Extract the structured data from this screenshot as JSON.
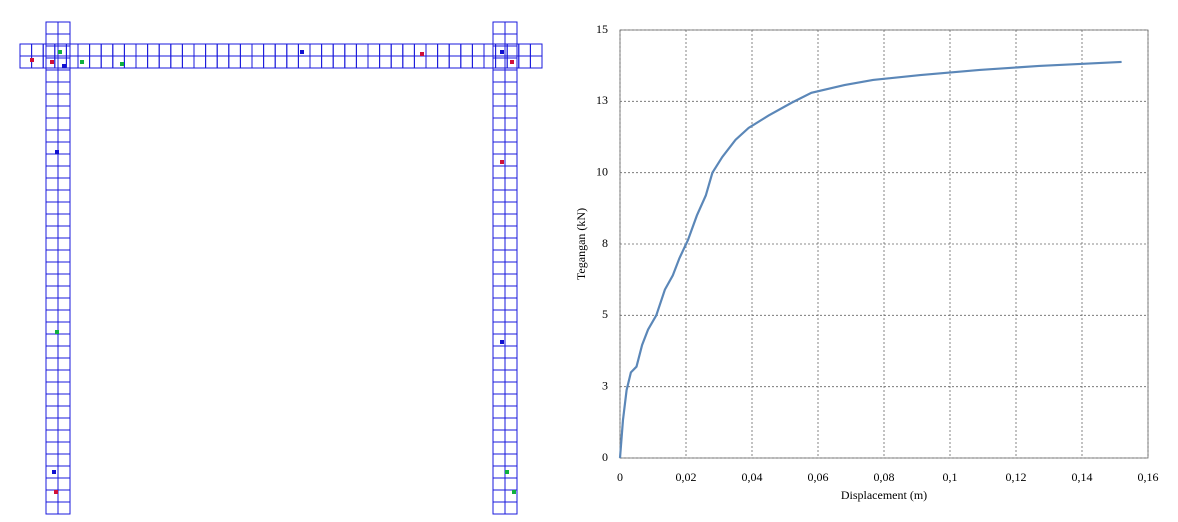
{
  "chart_data": {
    "type": "line",
    "xlabel": "Displacement (m)",
    "ylabel": "Tegangan  (kN)",
    "x": [
      0,
      0.0009,
      0.002,
      0.0033,
      0.005,
      0.0067,
      0.0085,
      0.011,
      0.0136,
      0.016,
      0.018,
      0.0206,
      0.0233,
      0.026,
      0.028,
      0.031,
      0.035,
      0.039,
      0.045,
      0.052,
      0.058,
      0.068,
      0.0767,
      0.091,
      0.109,
      0.127,
      0.152
    ],
    "series": [
      {
        "color": "#5b87b8",
        "values": [
          0,
          1.33,
          2.38,
          3.0,
          3.2,
          3.96,
          4.5,
          5.0,
          5.9,
          6.4,
          7.0,
          7.64,
          8.5,
          9.2,
          10.0,
          10.55,
          11.15,
          11.57,
          12.0,
          12.45,
          12.8,
          13.07,
          13.25,
          13.42,
          13.6,
          13.74,
          13.88
        ]
      }
    ],
    "xlim": [
      0,
      0.16
    ],
    "ylim": [
      0,
      15
    ],
    "xticks": [
      0,
      {
        "value": 0.02,
        "label": "0,02"
      },
      {
        "value": 0.04,
        "label": "0,04"
      },
      {
        "value": 0.06,
        "label": "0,06"
      },
      {
        "value": 0.08,
        "label": "0,08"
      },
      {
        "value": 0.1,
        "label": "0,1"
      },
      {
        "value": 0.12,
        "label": "0,12"
      },
      {
        "value": 0.14,
        "label": "0,14"
      },
      {
        "value": 0.16,
        "label": "0,16"
      }
    ],
    "yticks": [
      0,
      {
        "value": 2.5,
        "label": "3"
      },
      5,
      {
        "value": 7.5,
        "label": "8"
      },
      10,
      {
        "value": 12.5,
        "label": "13"
      },
      15
    ],
    "grid": true
  }
}
